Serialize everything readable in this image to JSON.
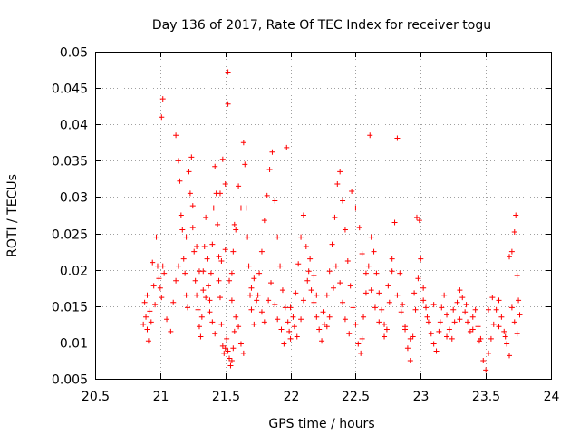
{
  "chart_data": {
    "type": "scatter",
    "title": "Day 136 of 2017, Rate Of TEC Index for receiver togu",
    "xlabel": "GPS time / hours",
    "ylabel": "ROTI / TECUs",
    "xlim": [
      20.5,
      24
    ],
    "ylim": [
      0.005,
      0.05
    ],
    "xticks": [
      "20.5",
      "21",
      "21.5",
      "22",
      "22.5",
      "23",
      "23.5",
      "24"
    ],
    "yticks": [
      "0.005",
      "0.01",
      "0.015",
      "0.02",
      "0.025",
      "0.03",
      "0.035",
      "0.04",
      "0.045",
      "0.05"
    ],
    "grid": true,
    "marker": "+",
    "series_color": "#ff0000",
    "series": [
      {
        "points": [
          [
            20.87,
            0.0125
          ],
          [
            20.88,
            0.0155
          ],
          [
            20.89,
            0.0135
          ],
          [
            20.9,
            0.0118
          ],
          [
            20.9,
            0.0165
          ],
          [
            20.91,
            0.0102
          ],
          [
            20.92,
            0.0143
          ],
          [
            20.93,
            0.0128
          ],
          [
            20.94,
            0.021
          ],
          [
            20.95,
            0.0178
          ],
          [
            20.96,
            0.0152
          ],
          [
            20.97,
            0.0245
          ],
          [
            20.98,
            0.0205
          ],
          [
            20.99,
            0.0188
          ],
          [
            21.0,
            0.0175
          ],
          [
            21.01,
            0.0162
          ],
          [
            21.02,
            0.0435
          ],
          [
            21.01,
            0.041
          ],
          [
            21.02,
            0.0205
          ],
          [
            21.03,
            0.0195
          ],
          [
            21.05,
            0.0132
          ],
          [
            21.08,
            0.0115
          ],
          [
            21.12,
            0.0385
          ],
          [
            21.14,
            0.035
          ],
          [
            21.15,
            0.0322
          ],
          [
            21.16,
            0.0275
          ],
          [
            21.17,
            0.0255
          ],
          [
            21.18,
            0.0215
          ],
          [
            21.19,
            0.0195
          ],
          [
            21.2,
            0.0165
          ],
          [
            21.21,
            0.0148
          ],
          [
            21.22,
            0.0335
          ],
          [
            21.23,
            0.0305
          ],
          [
            21.24,
            0.0355
          ],
          [
            21.25,
            0.0288
          ],
          [
            21.26,
            0.0225
          ],
          [
            21.27,
            0.0185
          ],
          [
            21.28,
            0.0165
          ],
          [
            21.29,
            0.0145
          ],
          [
            21.3,
            0.0122
          ],
          [
            21.31,
            0.0108
          ],
          [
            21.32,
            0.0135
          ],
          [
            21.33,
            0.0198
          ],
          [
            21.34,
            0.0232
          ],
          [
            21.35,
            0.0272
          ],
          [
            21.36,
            0.0215
          ],
          [
            21.37,
            0.0178
          ],
          [
            21.38,
            0.0158
          ],
          [
            21.39,
            0.0195
          ],
          [
            21.4,
            0.0235
          ],
          [
            21.41,
            0.0285
          ],
          [
            21.42,
            0.0342
          ],
          [
            21.43,
            0.0305
          ],
          [
            21.44,
            0.0262
          ],
          [
            21.45,
            0.0218
          ],
          [
            21.46,
            0.0162
          ],
          [
            21.47,
            0.0125
          ],
          [
            21.48,
            0.0095
          ],
          [
            21.49,
            0.0085
          ],
          [
            21.5,
            0.0092
          ],
          [
            21.51,
            0.0105
          ],
          [
            21.52,
            0.0088
          ],
          [
            21.53,
            0.0078
          ],
          [
            21.54,
            0.0068
          ],
          [
            21.55,
            0.0075
          ],
          [
            21.56,
            0.0092
          ],
          [
            21.57,
            0.0115
          ],
          [
            21.58,
            0.0135
          ],
          [
            21.52,
            0.0472
          ],
          [
            21.52,
            0.0428
          ],
          [
            21.5,
            0.0318
          ],
          [
            21.48,
            0.0352
          ],
          [
            21.46,
            0.0305
          ],
          [
            21.55,
            0.0195
          ],
          [
            21.56,
            0.0225
          ],
          [
            21.57,
            0.0262
          ],
          [
            21.58,
            0.0255
          ],
          [
            21.6,
            0.0315
          ],
          [
            21.62,
            0.0285
          ],
          [
            21.64,
            0.0375
          ],
          [
            21.65,
            0.0345
          ],
          [
            21.66,
            0.0285
          ],
          [
            21.67,
            0.0245
          ],
          [
            21.68,
            0.0205
          ],
          [
            21.69,
            0.0165
          ],
          [
            21.7,
            0.0145
          ],
          [
            21.72,
            0.0125
          ],
          [
            21.74,
            0.0158
          ],
          [
            21.76,
            0.0195
          ],
          [
            21.78,
            0.0225
          ],
          [
            21.8,
            0.0268
          ],
          [
            21.82,
            0.0302
          ],
          [
            21.84,
            0.0338
          ],
          [
            21.86,
            0.0362
          ],
          [
            21.88,
            0.0295
          ],
          [
            21.9,
            0.0245
          ],
          [
            21.92,
            0.0205
          ],
          [
            21.94,
            0.0172
          ],
          [
            21.96,
            0.0148
          ],
          [
            21.97,
            0.0368
          ],
          [
            21.98,
            0.0128
          ],
          [
            21.99,
            0.0115
          ],
          [
            22.0,
            0.0105
          ],
          [
            22.02,
            0.0135
          ],
          [
            22.04,
            0.0168
          ],
          [
            22.06,
            0.0208
          ],
          [
            22.08,
            0.0245
          ],
          [
            22.1,
            0.0275
          ],
          [
            22.12,
            0.0232
          ],
          [
            22.14,
            0.0198
          ],
          [
            22.16,
            0.0172
          ],
          [
            22.18,
            0.0155
          ],
          [
            22.2,
            0.0135
          ],
          [
            22.22,
            0.0118
          ],
          [
            22.24,
            0.0102
          ],
          [
            22.26,
            0.0125
          ],
          [
            22.28,
            0.0165
          ],
          [
            22.3,
            0.0198
          ],
          [
            22.32,
            0.0235
          ],
          [
            22.34,
            0.0272
          ],
          [
            22.36,
            0.0318
          ],
          [
            22.38,
            0.0335
          ],
          [
            22.4,
            0.0295
          ],
          [
            22.42,
            0.0255
          ],
          [
            22.44,
            0.0212
          ],
          [
            22.46,
            0.0178
          ],
          [
            22.48,
            0.0148
          ],
          [
            22.5,
            0.0125
          ],
          [
            22.52,
            0.0098
          ],
          [
            22.54,
            0.0085
          ],
          [
            22.55,
            0.0105
          ],
          [
            22.56,
            0.0135
          ],
          [
            22.58,
            0.0168
          ],
          [
            22.6,
            0.0205
          ],
          [
            22.61,
            0.0385
          ],
          [
            22.62,
            0.0245
          ],
          [
            22.64,
            0.0225
          ],
          [
            22.66,
            0.0195
          ],
          [
            22.68,
            0.0168
          ],
          [
            22.7,
            0.0145
          ],
          [
            22.72,
            0.0125
          ],
          [
            22.74,
            0.0118
          ],
          [
            22.76,
            0.0155
          ],
          [
            22.78,
            0.0215
          ],
          [
            22.8,
            0.0265
          ],
          [
            22.82,
            0.0381
          ],
          [
            22.84,
            0.0195
          ],
          [
            22.86,
            0.0152
          ],
          [
            22.88,
            0.0118
          ],
          [
            22.9,
            0.0092
          ],
          [
            22.92,
            0.0075
          ],
          [
            22.94,
            0.0108
          ],
          [
            22.96,
            0.0145
          ],
          [
            22.97,
            0.0272
          ],
          [
            22.99,
            0.0268
          ],
          [
            23.0,
            0.0215
          ],
          [
            23.02,
            0.0175
          ],
          [
            23.04,
            0.0148
          ],
          [
            23.06,
            0.0128
          ],
          [
            23.08,
            0.0112
          ],
          [
            23.1,
            0.0098
          ],
          [
            23.12,
            0.0088
          ],
          [
            23.14,
            0.0115
          ],
          [
            23.16,
            0.0148
          ],
          [
            23.18,
            0.0165
          ],
          [
            23.2,
            0.0138
          ],
          [
            23.22,
            0.0118
          ],
          [
            23.24,
            0.0105
          ],
          [
            23.26,
            0.0128
          ],
          [
            23.28,
            0.0155
          ],
          [
            23.3,
            0.0172
          ],
          [
            23.32,
            0.0162
          ],
          [
            23.34,
            0.0142
          ],
          [
            23.36,
            0.0128
          ],
          [
            23.38,
            0.0115
          ],
          [
            23.4,
            0.0135
          ],
          [
            23.42,
            0.0145
          ],
          [
            23.44,
            0.0122
          ],
          [
            23.46,
            0.0105
          ],
          [
            23.48,
            0.0075
          ],
          [
            23.5,
            0.0062
          ],
          [
            23.52,
            0.0085
          ],
          [
            23.54,
            0.0105
          ],
          [
            23.56,
            0.0125
          ],
          [
            23.58,
            0.0145
          ],
          [
            23.6,
            0.0158
          ],
          [
            23.62,
            0.0135
          ],
          [
            23.64,
            0.0115
          ],
          [
            23.66,
            0.0098
          ],
          [
            23.68,
            0.0082
          ],
          [
            23.7,
            0.0225
          ],
          [
            23.72,
            0.0252
          ],
          [
            23.73,
            0.0275
          ],
          [
            23.74,
            0.0192
          ],
          [
            23.75,
            0.0158
          ],
          [
            23.76,
            0.0138
          ],
          [
            23.74,
            0.0112
          ],
          [
            23.72,
            0.0128
          ],
          [
            23.7,
            0.0148
          ],
          [
            23.68,
            0.0218
          ],
          [
            21.1,
            0.0155
          ],
          [
            21.12,
            0.0185
          ],
          [
            21.14,
            0.0205
          ],
          [
            21.2,
            0.0245
          ],
          [
            21.25,
            0.0258
          ],
          [
            21.28,
            0.0232
          ],
          [
            21.3,
            0.0198
          ],
          [
            21.33,
            0.0172
          ],
          [
            21.35,
            0.0162
          ],
          [
            21.38,
            0.0142
          ],
          [
            21.4,
            0.0128
          ],
          [
            21.42,
            0.0112
          ],
          [
            21.45,
            0.0185
          ],
          [
            21.47,
            0.0212
          ],
          [
            21.5,
            0.0228
          ],
          [
            21.53,
            0.0185
          ],
          [
            21.55,
            0.0158
          ],
          [
            21.6,
            0.0122
          ],
          [
            21.62,
            0.0098
          ],
          [
            21.64,
            0.0085
          ],
          [
            21.7,
            0.0175
          ],
          [
            21.72,
            0.0188
          ],
          [
            21.75,
            0.0165
          ],
          [
            21.78,
            0.0142
          ],
          [
            21.8,
            0.0128
          ],
          [
            21.83,
            0.0158
          ],
          [
            21.85,
            0.0182
          ],
          [
            21.88,
            0.0152
          ],
          [
            21.9,
            0.0132
          ],
          [
            21.93,
            0.0118
          ],
          [
            21.95,
            0.0098
          ],
          [
            22.0,
            0.0148
          ],
          [
            22.03,
            0.0122
          ],
          [
            22.05,
            0.0108
          ],
          [
            22.08,
            0.0132
          ],
          [
            22.1,
            0.0158
          ],
          [
            22.13,
            0.0185
          ],
          [
            22.15,
            0.0215
          ],
          [
            22.18,
            0.0192
          ],
          [
            22.2,
            0.0165
          ],
          [
            22.25,
            0.0142
          ],
          [
            22.28,
            0.0122
          ],
          [
            22.3,
            0.0135
          ],
          [
            22.33,
            0.0175
          ],
          [
            22.35,
            0.0205
          ],
          [
            22.38,
            0.0182
          ],
          [
            22.4,
            0.0155
          ],
          [
            22.42,
            0.0132
          ],
          [
            22.45,
            0.0112
          ],
          [
            22.47,
            0.0308
          ],
          [
            22.5,
            0.0285
          ],
          [
            22.53,
            0.0258
          ],
          [
            22.55,
            0.0222
          ],
          [
            22.58,
            0.0195
          ],
          [
            22.62,
            0.0172
          ],
          [
            22.65,
            0.0148
          ],
          [
            22.68,
            0.0128
          ],
          [
            22.72,
            0.0108
          ],
          [
            22.75,
            0.0178
          ],
          [
            22.78,
            0.0198
          ],
          [
            22.82,
            0.0165
          ],
          [
            22.85,
            0.0142
          ],
          [
            22.88,
            0.0122
          ],
          [
            22.92,
            0.0105
          ],
          [
            22.95,
            0.0168
          ],
          [
            22.98,
            0.0188
          ],
          [
            23.02,
            0.0158
          ],
          [
            23.05,
            0.0135
          ],
          [
            23.1,
            0.0152
          ],
          [
            23.15,
            0.0128
          ],
          [
            23.2,
            0.0108
          ],
          [
            23.25,
            0.0145
          ],
          [
            23.3,
            0.0132
          ],
          [
            23.35,
            0.0152
          ],
          [
            23.4,
            0.0118
          ],
          [
            23.45,
            0.0102
          ],
          [
            23.52,
            0.0145
          ],
          [
            23.55,
            0.0162
          ],
          [
            23.6,
            0.0122
          ],
          [
            23.65,
            0.0108
          ]
        ]
      }
    ]
  }
}
